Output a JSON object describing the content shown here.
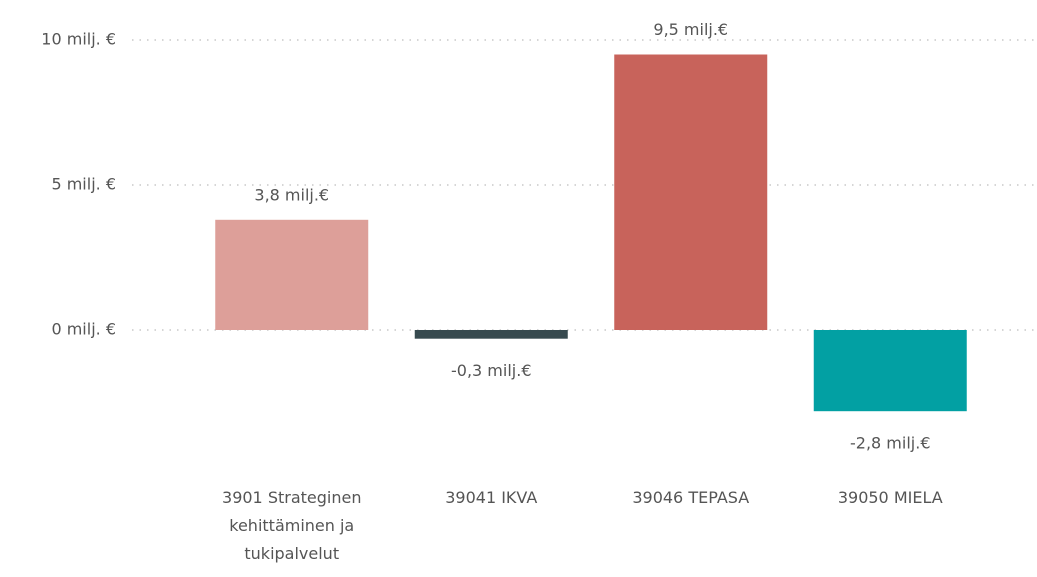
{
  "chart_data": {
    "type": "bar",
    "categories": [
      "3901 Strateginen kehittäminen ja tukipalvelut",
      "39041 IKVA",
      "39046 TEPASA",
      "39050 MIELA"
    ],
    "values": [
      3.8,
      -0.3,
      9.5,
      -2.8
    ],
    "value_labels": [
      "3,8 milj.€",
      "-0,3 milj.€",
      "9,5 milj.€",
      "-2,8 milj.€"
    ],
    "colors": [
      "#dd9f99",
      "#374a4f",
      "#c8635b",
      "#02a0a3"
    ],
    "ylim": [
      -4,
      10.5
    ],
    "yticks": [
      {
        "value": 0,
        "label": "0 milj. €"
      },
      {
        "value": 5,
        "label": "5 milj. €"
      },
      {
        "value": 10,
        "label": "10 milj. €"
      }
    ],
    "grid": true
  }
}
